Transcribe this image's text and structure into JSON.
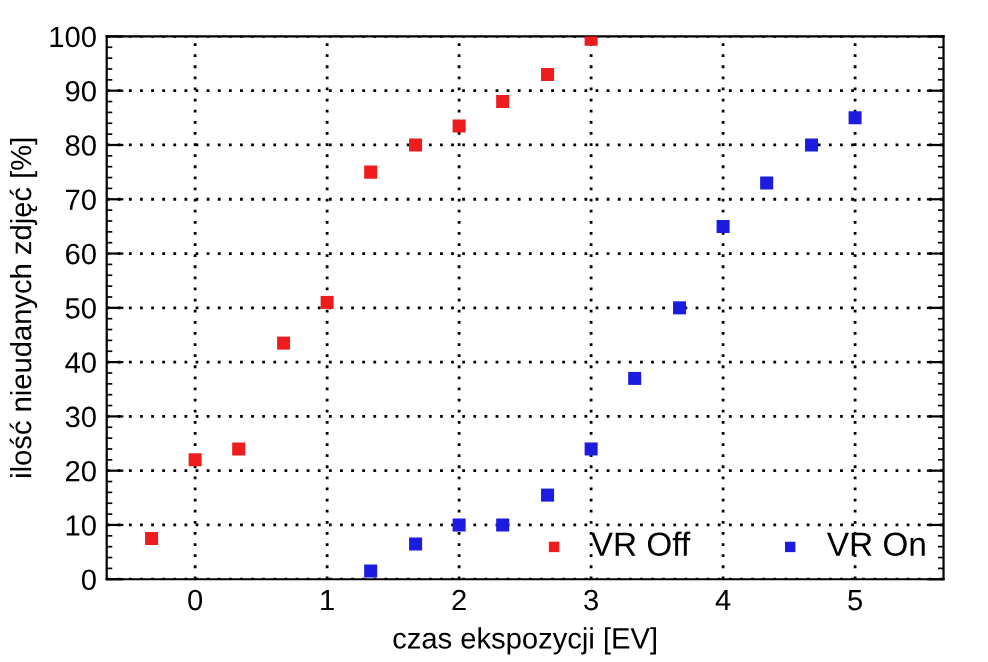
{
  "chart_data": {
    "type": "scatter",
    "xlabel": "czas ekspozycji [EV]",
    "ylabel": "ilość nieudanych zdjęć [%]",
    "xlim": [
      -0.67,
      5.67
    ],
    "xticks": [
      0,
      1,
      2,
      3,
      4,
      5
    ],
    "ylim": [
      0,
      100
    ],
    "yticks": [
      0,
      10,
      20,
      30,
      40,
      50,
      60,
      70,
      80,
      90,
      100
    ],
    "grid": true,
    "legend": "bottom right",
    "marker": "square",
    "series": [
      {
        "name": "VR Off",
        "color": "#ee1c1c",
        "x": [
          -0.33,
          0,
          0.33,
          0.67,
          1,
          1.33,
          1.67,
          2,
          2.33,
          2.67,
          3
        ],
        "values": [
          7.5,
          22,
          24,
          43.5,
          51,
          75,
          80,
          83.5,
          88,
          93,
          99.5
        ]
      },
      {
        "name": "VR On",
        "color": "#1c1ce0",
        "x": [
          1.33,
          1.67,
          2,
          2.33,
          2.67,
          3,
          3.33,
          3.67,
          4,
          4.33,
          4.67,
          5
        ],
        "values": [
          1.5,
          6.5,
          10,
          10,
          15.5,
          24,
          37,
          50,
          65,
          73,
          80,
          85
        ]
      }
    ]
  }
}
